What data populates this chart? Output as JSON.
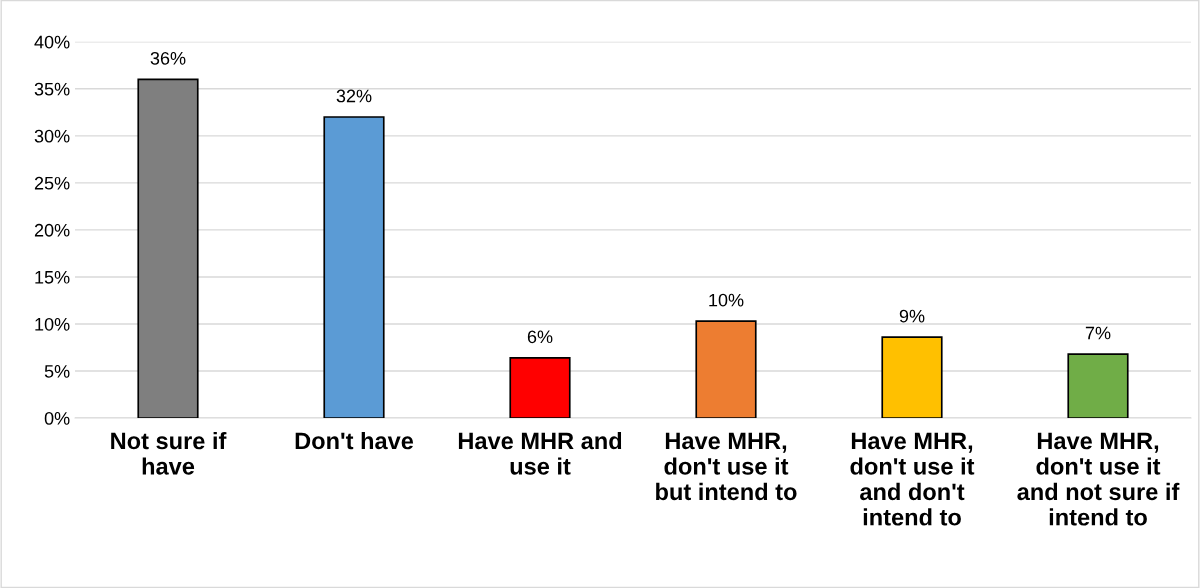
{
  "chart_data": {
    "type": "bar",
    "categories": [
      "Not sure if\nhave",
      "Don't have",
      "Have MHR and\nuse it",
      "Have MHR,\ndon't use it\nbut intend to",
      "Have MHR,\ndon't use it\nand don't\nintend to",
      "Have MHR,\ndon't use it\nand not sure if\nintend to"
    ],
    "values": [
      36,
      32,
      6.4,
      10.3,
      8.6,
      6.8
    ],
    "colors": [
      "#7f7f7f",
      "#5b9bd5",
      "#ff0000",
      "#ed7d31",
      "#ffc000",
      "#70ad47"
    ],
    "value_labels": [
      "36%",
      "32%",
      "6%",
      "10%",
      "9%",
      "7%"
    ],
    "ylim": [
      0,
      40
    ],
    "yticks": [
      {
        "value": 0,
        "label": "0%"
      },
      {
        "value": 5,
        "label": "5%"
      },
      {
        "value": 10,
        "label": "10%"
      },
      {
        "value": 15,
        "label": "15%"
      },
      {
        "value": 20,
        "label": "20%"
      },
      {
        "value": 25,
        "label": "25%"
      },
      {
        "value": 30,
        "label": "30%"
      },
      {
        "value": 35,
        "label": "35%"
      },
      {
        "value": 40,
        "label": "40%"
      }
    ],
    "grid": "y",
    "legend": false
  }
}
